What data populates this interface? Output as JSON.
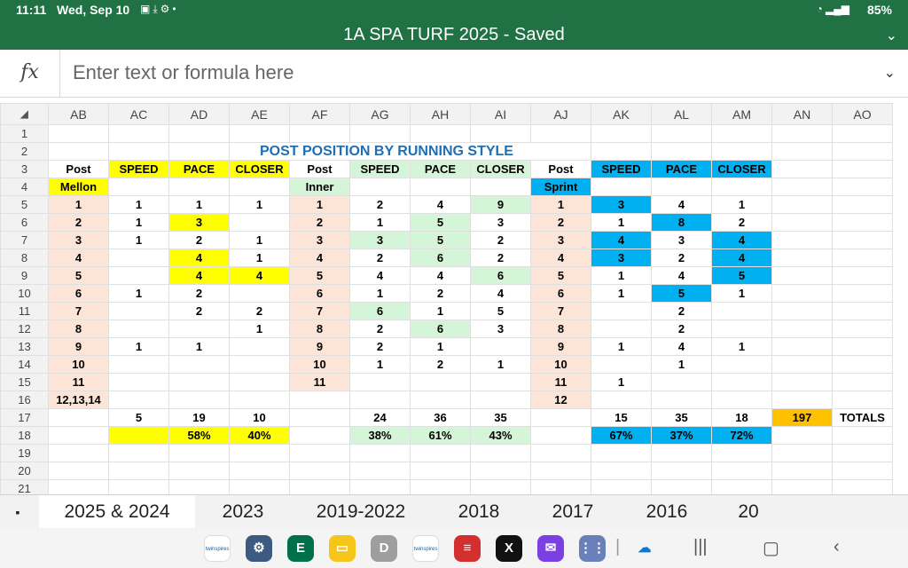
{
  "status": {
    "time": "11:11",
    "date": "Wed, Sep 10",
    "battery": "85%"
  },
  "title": "1A SPA TURF 2025 - Saved",
  "formula": {
    "placeholder": "Enter text or formula here",
    "fx": "fx"
  },
  "columns": [
    "AB",
    "AC",
    "AD",
    "AE",
    "AF",
    "AG",
    "AH",
    "AI",
    "AJ",
    "AK",
    "AL",
    "AM",
    "AN",
    "AO"
  ],
  "sheet_title": "POST POSITION BY RUNNING STYLE",
  "rows": [
    {
      "n": "1",
      "cells": []
    },
    {
      "n": "2",
      "cells": []
    },
    {
      "n": "3",
      "cells": [
        [
          "Post",
          ""
        ],
        [
          "SPEED",
          "yel"
        ],
        [
          "PACE",
          "yel"
        ],
        [
          "CLOSER",
          "yel"
        ],
        [
          "Post",
          ""
        ],
        [
          "SPEED",
          "grn"
        ],
        [
          "PACE",
          "grn"
        ],
        [
          "CLOSER",
          "grn"
        ],
        [
          "Post",
          ""
        ],
        [
          "SPEED",
          "blu"
        ],
        [
          "PACE",
          "blu"
        ],
        [
          "CLOSER",
          "blu"
        ],
        [
          "",
          ""
        ],
        [
          "",
          ""
        ]
      ]
    },
    {
      "n": "4",
      "cells": [
        [
          "Mellon",
          "yel"
        ],
        [
          "",
          ""
        ],
        [
          "",
          ""
        ],
        [
          "",
          ""
        ],
        [
          "Inner",
          "grn"
        ],
        [
          "",
          ""
        ],
        [
          "",
          ""
        ],
        [
          "",
          ""
        ],
        [
          "Sprint",
          "blu"
        ],
        [
          "",
          ""
        ],
        [
          "",
          ""
        ],
        [
          "",
          ""
        ],
        [
          "",
          ""
        ],
        [
          "",
          ""
        ]
      ]
    },
    {
      "n": "5",
      "cells": [
        [
          "1",
          "pch"
        ],
        [
          "1",
          ""
        ],
        [
          "1",
          ""
        ],
        [
          "1",
          ""
        ],
        [
          "1",
          "pch"
        ],
        [
          "2",
          ""
        ],
        [
          "4",
          ""
        ],
        [
          "9",
          "grn"
        ],
        [
          "1",
          "pch"
        ],
        [
          "3",
          "blu"
        ],
        [
          "4",
          ""
        ],
        [
          "1",
          ""
        ],
        [
          "",
          ""
        ],
        [
          "",
          ""
        ]
      ]
    },
    {
      "n": "6",
      "cells": [
        [
          "2",
          "pch"
        ],
        [
          "1",
          ""
        ],
        [
          "3",
          "yel"
        ],
        [
          "",
          ""
        ],
        [
          "2",
          "pch"
        ],
        [
          "1",
          ""
        ],
        [
          "5",
          "grn"
        ],
        [
          "3",
          ""
        ],
        [
          "2",
          "pch"
        ],
        [
          "1",
          ""
        ],
        [
          "8",
          "blu"
        ],
        [
          "2",
          ""
        ],
        [
          "",
          ""
        ],
        [
          "",
          ""
        ]
      ]
    },
    {
      "n": "7",
      "cells": [
        [
          "3",
          "pch"
        ],
        [
          "1",
          ""
        ],
        [
          "2",
          ""
        ],
        [
          "1",
          ""
        ],
        [
          "3",
          "pch"
        ],
        [
          "3",
          "grn"
        ],
        [
          "5",
          "grn"
        ],
        [
          "2",
          ""
        ],
        [
          "3",
          "pch"
        ],
        [
          "4",
          "blu"
        ],
        [
          "3",
          ""
        ],
        [
          "4",
          "blu"
        ],
        [
          "",
          ""
        ],
        [
          "",
          ""
        ]
      ]
    },
    {
      "n": "8",
      "cells": [
        [
          "4",
          "pch"
        ],
        [
          "",
          ""
        ],
        [
          "4",
          "yel"
        ],
        [
          "1",
          ""
        ],
        [
          "4",
          "pch"
        ],
        [
          "2",
          ""
        ],
        [
          "6",
          "grn"
        ],
        [
          "2",
          ""
        ],
        [
          "4",
          "pch"
        ],
        [
          "3",
          "blu"
        ],
        [
          "2",
          ""
        ],
        [
          "4",
          "blu"
        ],
        [
          "",
          ""
        ],
        [
          "",
          ""
        ]
      ]
    },
    {
      "n": "9",
      "cells": [
        [
          "5",
          "pch"
        ],
        [
          "",
          ""
        ],
        [
          "4",
          "yel"
        ],
        [
          "4",
          "yel"
        ],
        [
          "5",
          "pch"
        ],
        [
          "4",
          ""
        ],
        [
          "4",
          ""
        ],
        [
          "6",
          "grn"
        ],
        [
          "5",
          "pch"
        ],
        [
          "1",
          ""
        ],
        [
          "4",
          ""
        ],
        [
          "5",
          "blu"
        ],
        [
          "",
          ""
        ],
        [
          "",
          ""
        ]
      ]
    },
    {
      "n": "10",
      "cells": [
        [
          "6",
          "pch"
        ],
        [
          "1",
          ""
        ],
        [
          "2",
          ""
        ],
        [
          "",
          ""
        ],
        [
          "6",
          "pch"
        ],
        [
          "1",
          ""
        ],
        [
          "2",
          ""
        ],
        [
          "4",
          ""
        ],
        [
          "6",
          "pch"
        ],
        [
          "1",
          ""
        ],
        [
          "5",
          "blu"
        ],
        [
          "1",
          ""
        ],
        [
          "",
          ""
        ],
        [
          "",
          ""
        ]
      ]
    },
    {
      "n": "11",
      "cells": [
        [
          "7",
          "pch"
        ],
        [
          "",
          ""
        ],
        [
          "2",
          ""
        ],
        [
          "2",
          ""
        ],
        [
          "7",
          "pch"
        ],
        [
          "6",
          "grn"
        ],
        [
          "1",
          ""
        ],
        [
          "5",
          ""
        ],
        [
          "7",
          "pch"
        ],
        [
          "",
          ""
        ],
        [
          "2",
          ""
        ],
        [
          "",
          ""
        ],
        [
          "",
          ""
        ],
        [
          "",
          ""
        ]
      ]
    },
    {
      "n": "12",
      "cells": [
        [
          "8",
          "pch"
        ],
        [
          "",
          ""
        ],
        [
          "",
          ""
        ],
        [
          "1",
          ""
        ],
        [
          "8",
          "pch"
        ],
        [
          "2",
          ""
        ],
        [
          "6",
          "grn"
        ],
        [
          "3",
          ""
        ],
        [
          "8",
          "pch"
        ],
        [
          "",
          ""
        ],
        [
          "2",
          ""
        ],
        [
          "",
          ""
        ],
        [
          "",
          ""
        ],
        [
          "",
          ""
        ]
      ]
    },
    {
      "n": "13",
      "cells": [
        [
          "9",
          "pch"
        ],
        [
          "1",
          ""
        ],
        [
          "1",
          ""
        ],
        [
          "",
          ""
        ],
        [
          "9",
          "pch"
        ],
        [
          "2",
          ""
        ],
        [
          "1",
          ""
        ],
        [
          "",
          ""
        ],
        [
          "9",
          "pch"
        ],
        [
          "1",
          ""
        ],
        [
          "4",
          ""
        ],
        [
          "1",
          ""
        ],
        [
          "",
          ""
        ],
        [
          "",
          ""
        ]
      ]
    },
    {
      "n": "14",
      "cells": [
        [
          "10",
          "pch"
        ],
        [
          "",
          ""
        ],
        [
          "",
          ""
        ],
        [
          "",
          ""
        ],
        [
          "10",
          "pch"
        ],
        [
          "1",
          ""
        ],
        [
          "2",
          ""
        ],
        [
          "1",
          ""
        ],
        [
          "10",
          "pch"
        ],
        [
          "",
          ""
        ],
        [
          "1",
          ""
        ],
        [
          "",
          ""
        ],
        [
          "",
          ""
        ],
        [
          "",
          ""
        ]
      ]
    },
    {
      "n": "15",
      "cells": [
        [
          "11",
          "pch"
        ],
        [
          "",
          ""
        ],
        [
          "",
          ""
        ],
        [
          "",
          ""
        ],
        [
          "11",
          "pch"
        ],
        [
          "",
          ""
        ],
        [
          "",
          ""
        ],
        [
          "",
          ""
        ],
        [
          "11",
          "pch"
        ],
        [
          "1",
          ""
        ],
        [
          "",
          ""
        ],
        [
          "",
          ""
        ],
        [
          "",
          ""
        ],
        [
          "",
          ""
        ]
      ]
    },
    {
      "n": "16",
      "cells": [
        [
          "12,13,14",
          "pch"
        ],
        [
          "",
          ""
        ],
        [
          "",
          ""
        ],
        [
          "",
          ""
        ],
        [
          "",
          ""
        ],
        [
          "",
          ""
        ],
        [
          "",
          ""
        ],
        [
          "",
          ""
        ],
        [
          "12",
          "pch"
        ],
        [
          "",
          ""
        ],
        [
          "",
          ""
        ],
        [
          "",
          ""
        ],
        [
          "",
          ""
        ],
        [
          "",
          ""
        ]
      ]
    },
    {
      "n": "17",
      "cells": [
        [
          "",
          ""
        ],
        [
          "5",
          ""
        ],
        [
          "19",
          ""
        ],
        [
          "10",
          ""
        ],
        [
          "",
          ""
        ],
        [
          "24",
          ""
        ],
        [
          "36",
          ""
        ],
        [
          "35",
          ""
        ],
        [
          "",
          ""
        ],
        [
          "15",
          ""
        ],
        [
          "35",
          ""
        ],
        [
          "18",
          ""
        ],
        [
          "197",
          "org"
        ],
        [
          "TOTALS",
          ""
        ]
      ]
    },
    {
      "n": "18",
      "cells": [
        [
          "",
          ""
        ],
        [
          "",
          "yel"
        ],
        [
          "58%",
          "yel"
        ],
        [
          "40%",
          "yel"
        ],
        [
          "",
          ""
        ],
        [
          "38%",
          "grn"
        ],
        [
          "61%",
          "grn"
        ],
        [
          "43%",
          "grn"
        ],
        [
          "",
          ""
        ],
        [
          "67%",
          "blu"
        ],
        [
          "37%",
          "blu"
        ],
        [
          "72%",
          "blu"
        ],
        [
          "",
          ""
        ],
        [
          "",
          ""
        ]
      ]
    },
    {
      "n": "19",
      "cells": []
    },
    {
      "n": "20",
      "cells": []
    },
    {
      "n": "21",
      "cells": []
    }
  ],
  "tabs": [
    "2025 & 2024",
    "2023",
    "2019-2022",
    "2018",
    "2017",
    "2016",
    "20"
  ],
  "apps": [
    {
      "name": "twinspires-app-icon",
      "label": "twinspires",
      "color": "#ffffff",
      "fg": "#1b5fa8"
    },
    {
      "name": "settings-app-icon",
      "label": "⚙",
      "color": "#3d5a80",
      "fg": "#ffffff"
    },
    {
      "name": "evernote-app-icon",
      "label": "E",
      "color": "#00704a",
      "fg": "#ffffff"
    },
    {
      "name": "files-app-icon",
      "label": "▭",
      "color": "#f5c518",
      "fg": "#ffffff"
    },
    {
      "name": "drive-app-icon",
      "label": "D",
      "color": "#9e9e9e",
      "fg": "#ffffff"
    },
    {
      "name": "twinspires-chrome-app-icon",
      "label": "twinspires",
      "color": "#ffffff",
      "fg": "#1b5fa8"
    },
    {
      "name": "racing-app-icon",
      "label": "≡",
      "color": "#d32f2f",
      "fg": "#ffffff"
    },
    {
      "name": "x-app-icon",
      "label": "X",
      "color": "#111111",
      "fg": "#ffffff"
    },
    {
      "name": "mail-app-icon",
      "label": "✉",
      "color": "#7b3fe4",
      "fg": "#ffffff"
    },
    {
      "name": "apps-grid-icon",
      "label": "⋮⋮",
      "color": "#6b7fb8",
      "fg": "#ffffff"
    },
    {
      "name": "onedrive-app-icon",
      "label": "☁",
      "color": "#f4f4f4",
      "fg": "#0a78d4"
    }
  ]
}
